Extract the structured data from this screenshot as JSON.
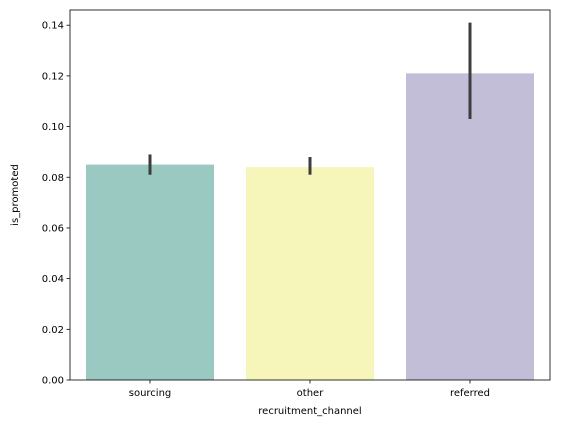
{
  "chart_data": {
    "type": "bar",
    "title": "",
    "xlabel": "recruitment_channel",
    "ylabel": "is_promoted",
    "categories": [
      "sourcing",
      "other",
      "referred"
    ],
    "values": [
      0.085,
      0.084,
      0.121
    ],
    "ci_low": [
      0.081,
      0.081,
      0.103
    ],
    "ci_high": [
      0.089,
      0.088,
      0.141
    ],
    "ylim": [
      0,
      0.146
    ],
    "yticks": [
      0.0,
      0.02,
      0.04,
      0.06,
      0.08,
      0.1,
      0.12,
      0.14
    ],
    "ytick_labels": [
      "0.00",
      "0.02",
      "0.04",
      "0.06",
      "0.08",
      "0.10",
      "0.12",
      "0.14"
    ],
    "grid": false,
    "colors": [
      "#99c9c0",
      "#f6f6bb",
      "#c2bed7"
    ],
    "errorbar_color": "#3d3d3d"
  }
}
